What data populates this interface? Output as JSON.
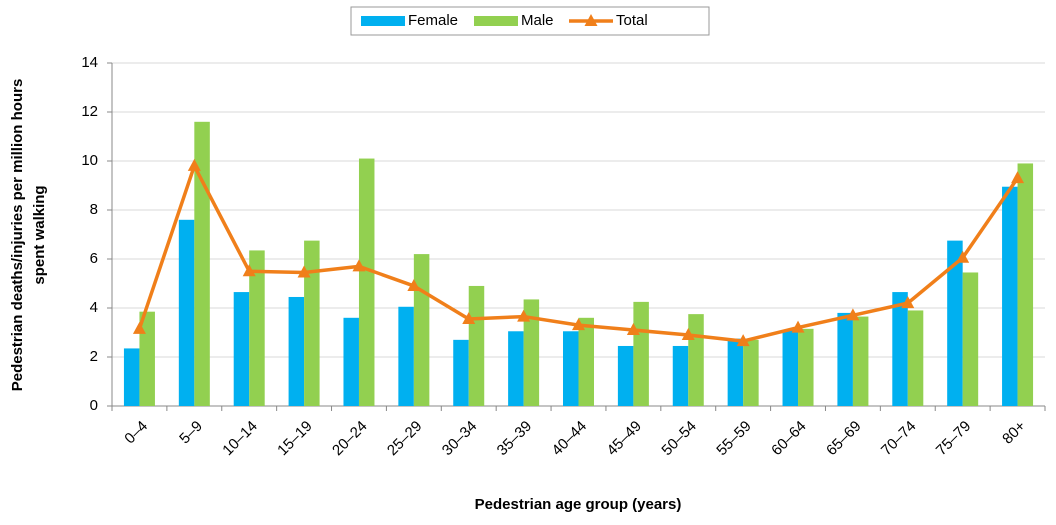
{
  "chart_data": {
    "type": "bar_line",
    "x_label": "Pedestrian age group (years)",
    "y_label": [
      "Pedestrian deaths/injuries per million hours",
      "spent walking"
    ],
    "categories": [
      "0–4",
      "5–9",
      "10–14",
      "15–19",
      "20–24",
      "25–29",
      "30–34",
      "35–39",
      "40–44",
      "45–49",
      "50–54",
      "55–59",
      "60–64",
      "65–69",
      "70–74",
      "75–79",
      "80+"
    ],
    "series": [
      {
        "name": "Female",
        "type": "bar",
        "color": "#00b0f0",
        "values": [
          2.35,
          7.6,
          4.65,
          4.45,
          3.6,
          4.05,
          2.7,
          3.05,
          3.05,
          2.45,
          2.45,
          2.75,
          3.1,
          3.8,
          4.65,
          6.75,
          8.95
        ]
      },
      {
        "name": "Male",
        "type": "bar",
        "color": "#92d050",
        "values": [
          3.85,
          11.6,
          6.35,
          6.75,
          10.1,
          6.2,
          4.9,
          4.35,
          3.6,
          4.25,
          3.75,
          2.7,
          3.15,
          3.65,
          3.9,
          5.45,
          9.9
        ]
      },
      {
        "name": "Total",
        "type": "line",
        "color": "#f07f1a",
        "values": [
          3.15,
          9.8,
          5.5,
          5.45,
          5.7,
          4.9,
          3.55,
          3.65,
          3.3,
          3.1,
          2.9,
          2.65,
          3.2,
          3.7,
          4.2,
          6.05,
          9.3
        ]
      }
    ],
    "ylim": [
      0,
      14
    ],
    "yticks": [
      0,
      2,
      4,
      6,
      8,
      10,
      12,
      14
    ],
    "grid": true,
    "legend": "top"
  }
}
